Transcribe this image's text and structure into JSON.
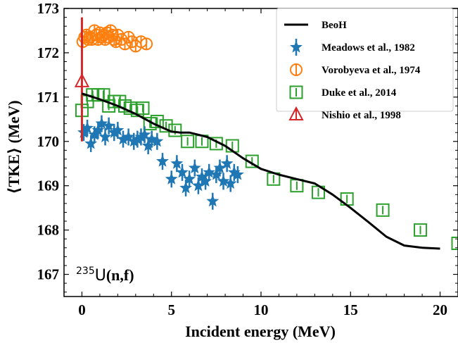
{
  "chart_data": {
    "type": "scatter",
    "xlabel": "Incident energy (MeV)",
    "ylabel": "⟨TKE⟩ (MeV)",
    "xlim": [
      -1,
      21
    ],
    "ylim": [
      166.5,
      173
    ],
    "xticks": [
      0,
      5,
      10,
      15,
      20
    ],
    "yticks": [
      167,
      168,
      169,
      170,
      171,
      172,
      173
    ],
    "grid": false,
    "legend_position": "top-right",
    "annotation": {
      "superscript": "235",
      "isotope": "U",
      "reaction": "(n,f)"
    },
    "series": [
      {
        "name": "BeoH",
        "kind": "line",
        "color": "#000000",
        "x": [
          0,
          1,
          2,
          3,
          4,
          5,
          5.5,
          6,
          7,
          8,
          9,
          10,
          11,
          12,
          13,
          14,
          15,
          16,
          17,
          18,
          19,
          20
        ],
        "y": [
          171.08,
          170.95,
          170.8,
          170.62,
          170.4,
          170.22,
          170.2,
          170.2,
          170.1,
          169.9,
          169.62,
          169.38,
          169.25,
          169.15,
          169.05,
          168.8,
          168.5,
          168.18,
          167.85,
          167.65,
          167.6,
          167.58
        ]
      },
      {
        "name": "Meadows et al., 1982",
        "kind": "star",
        "color": "#1f77b4",
        "x": [
          0.1,
          0.3,
          0.5,
          0.7,
          0.9,
          1.1,
          1.3,
          1.5,
          1.8,
          2.0,
          2.3,
          2.6,
          2.9,
          3.1,
          3.3,
          3.5,
          3.7,
          3.9,
          4.2,
          4.5,
          5.0,
          5.3,
          5.6,
          5.8,
          6.0,
          6.3,
          6.5,
          6.7,
          6.9,
          7.1,
          7.3,
          7.5,
          7.7,
          7.9,
          8.1,
          8.3,
          8.5,
          8.7
        ],
        "y": [
          170.2,
          170.3,
          169.95,
          170.15,
          170.25,
          170.4,
          170.1,
          170.35,
          170.2,
          170.25,
          170.05,
          170.1,
          170.0,
          170.05,
          170.1,
          170.15,
          169.9,
          170.05,
          170.0,
          169.55,
          169.15,
          169.5,
          169.3,
          168.95,
          169.15,
          169.4,
          169.0,
          169.2,
          169.1,
          169.3,
          168.65,
          169.25,
          169.4,
          169.1,
          169.5,
          169.05,
          169.3,
          169.25
        ]
      },
      {
        "name": "Vorobyeva et al., 1974",
        "kind": "circle",
        "color": "#ff7f0e",
        "x": [
          0.05,
          0.15,
          0.25,
          0.35,
          0.45,
          0.55,
          0.7,
          0.8,
          0.9,
          1.0,
          1.1,
          1.2,
          1.3,
          1.4,
          1.5,
          1.6,
          1.7,
          1.8,
          1.9,
          2.0,
          2.2,
          2.4,
          2.6,
          2.8,
          3.0,
          3.3,
          3.6
        ],
        "y": [
          172.25,
          172.35,
          172.4,
          172.3,
          172.35,
          172.3,
          172.5,
          172.4,
          172.3,
          172.45,
          172.35,
          172.4,
          172.3,
          172.45,
          172.35,
          172.5,
          172.4,
          172.3,
          172.25,
          172.4,
          172.3,
          172.2,
          172.35,
          172.25,
          172.15,
          172.25,
          172.2
        ]
      },
      {
        "name": "Duke et al., 2014",
        "kind": "square",
        "color": "#2ca02c",
        "x": [
          0.0,
          0.3,
          0.6,
          0.9,
          1.2,
          1.5,
          1.8,
          2.1,
          2.4,
          2.7,
          3.1,
          3.4,
          3.8,
          4.2,
          4.7,
          5.2,
          5.9,
          6.7,
          7.5,
          8.4,
          9.5,
          10.7,
          12.0,
          13.2,
          14.8,
          16.8,
          18.9,
          21.0
        ],
        "y": [
          170.7,
          170.9,
          171.05,
          171.05,
          171.05,
          170.8,
          170.9,
          170.9,
          170.8,
          170.75,
          170.7,
          170.75,
          170.4,
          170.45,
          170.35,
          170.25,
          170.0,
          170.0,
          169.95,
          169.9,
          169.55,
          169.15,
          169.0,
          168.85,
          168.7,
          168.45,
          168.0,
          167.7
        ]
      },
      {
        "name": "Nishio et al., 1998",
        "kind": "triangle",
        "color": "#d62728",
        "x": [
          0.0
        ],
        "y": [
          171.35
        ],
        "err_low": [
          170.0
        ],
        "err_high": [
          172.8
        ]
      }
    ]
  }
}
